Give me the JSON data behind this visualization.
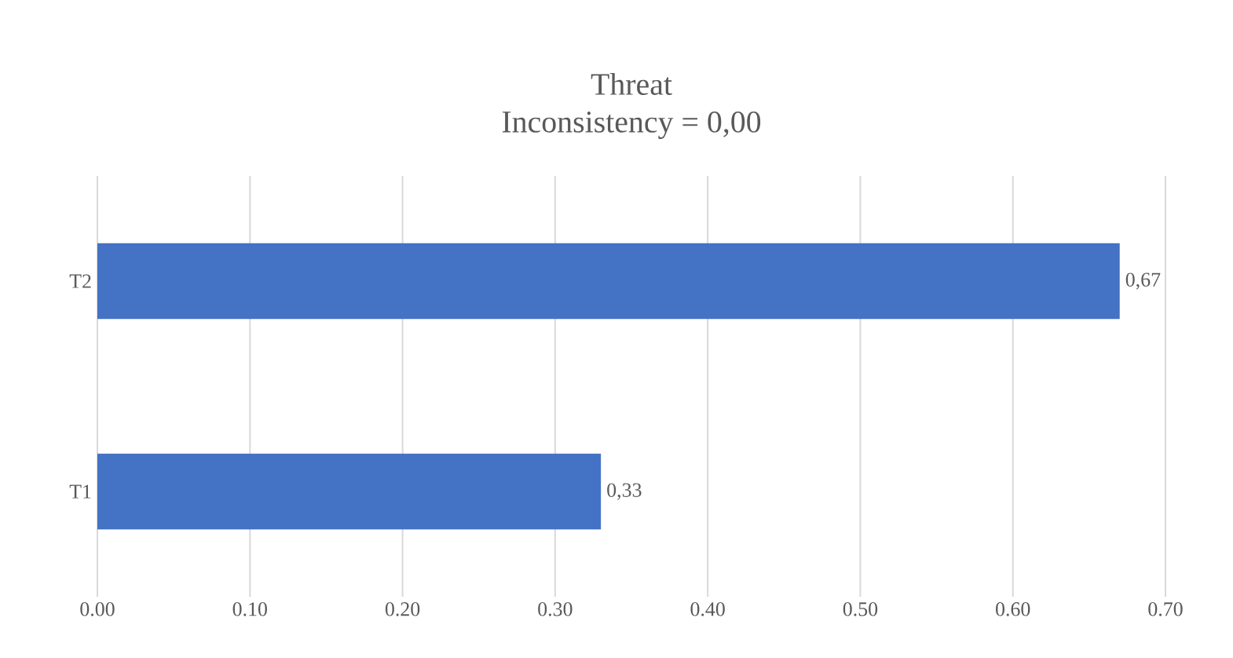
{
  "chart_data": {
    "type": "bar",
    "orientation": "horizontal",
    "title": "Threat",
    "subtitle": "Inconsistency = 0,00",
    "categories": [
      "T2",
      "T1"
    ],
    "values": [
      0.67,
      0.33
    ],
    "value_labels": [
      "0,67",
      "0,33"
    ],
    "color": "#4472c4",
    "xlim": [
      0,
      0.7
    ],
    "xticks": [
      {
        "value": 0,
        "label": "0.00"
      },
      {
        "value": 0.1,
        "label": "0.10"
      },
      {
        "value": 0.2,
        "label": "0.20"
      },
      {
        "value": 0.3,
        "label": "0.30"
      },
      {
        "value": 0.4,
        "label": "0.40"
      },
      {
        "value": 0.5,
        "label": "0.50"
      },
      {
        "value": 0.6,
        "label": "0.60"
      },
      {
        "value": 0.7,
        "label": "0.70"
      }
    ],
    "grid": "x"
  }
}
